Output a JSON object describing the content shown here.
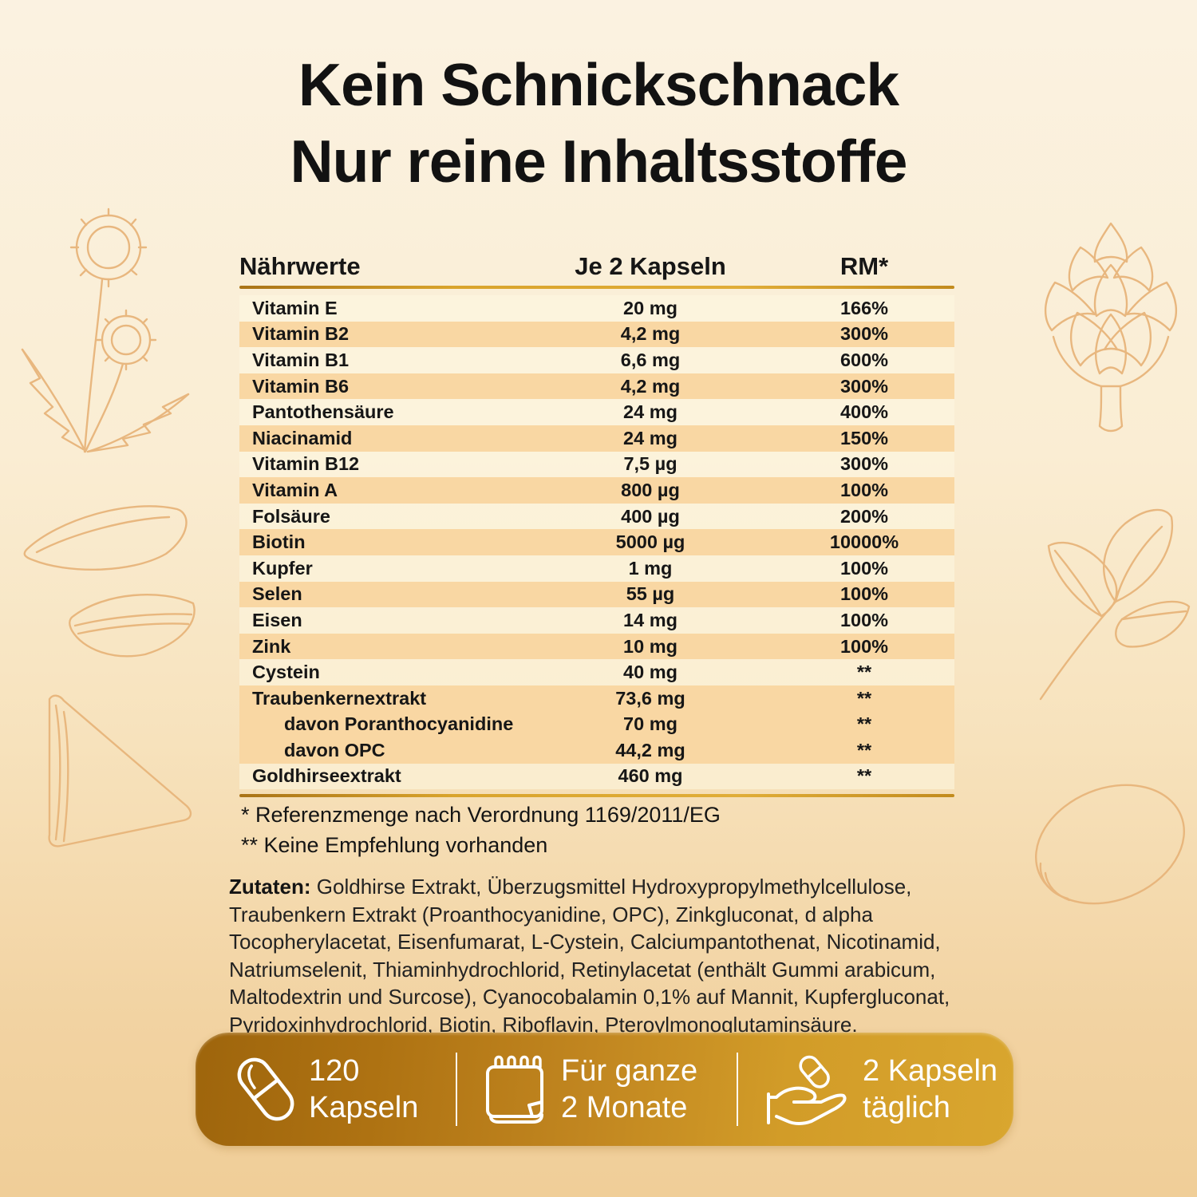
{
  "page": {
    "title_line1": "Kein Schnickschnack",
    "title_line2": "Nur reine Inhaltsstoffe"
  },
  "table": {
    "headers": {
      "name": "Nährwerte",
      "per": "Je 2 Kapseln",
      "rm": "RM*"
    },
    "rows": [
      {
        "name": "Vitamin E",
        "amount": "20 mg",
        "rm": "166%",
        "highlight": false,
        "indent": false
      },
      {
        "name": "Vitamin B2",
        "amount": "4,2 mg",
        "rm": "300%",
        "highlight": true,
        "indent": false
      },
      {
        "name": "Vitamin B1",
        "amount": "6,6 mg",
        "rm": "600%",
        "highlight": false,
        "indent": false
      },
      {
        "name": "Vitamin B6",
        "amount": "4,2 mg",
        "rm": "300%",
        "highlight": true,
        "indent": false
      },
      {
        "name": "Pantothensäure",
        "amount": "24 mg",
        "rm": "400%",
        "highlight": false,
        "indent": false
      },
      {
        "name": "Niacinamid",
        "amount": "24 mg",
        "rm": "150%",
        "highlight": true,
        "indent": false
      },
      {
        "name": "Vitamin B12",
        "amount": "7,5 µg",
        "rm": "300%",
        "highlight": false,
        "indent": false
      },
      {
        "name": "Vitamin A",
        "amount": "800 µg",
        "rm": "100%",
        "highlight": true,
        "indent": false
      },
      {
        "name": "Folsäure",
        "amount": "400 µg",
        "rm": "200%",
        "highlight": false,
        "indent": false
      },
      {
        "name": "Biotin",
        "amount": "5000 µg",
        "rm": "10000%",
        "highlight": true,
        "indent": false
      },
      {
        "name": "Kupfer",
        "amount": "1 mg",
        "rm": "100%",
        "highlight": false,
        "indent": false
      },
      {
        "name": "Selen",
        "amount": "55 µg",
        "rm": "100%",
        "highlight": true,
        "indent": false
      },
      {
        "name": "Eisen",
        "amount": "14 mg",
        "rm": "100%",
        "highlight": false,
        "indent": false
      },
      {
        "name": "Zink",
        "amount": "10 mg",
        "rm": "100%",
        "highlight": true,
        "indent": false
      },
      {
        "name": "Cystein",
        "amount": "40 mg",
        "rm": "**",
        "highlight": false,
        "indent": false
      },
      {
        "name": "Traubenkernextrakt",
        "amount": "73,6 mg",
        "rm": "**",
        "highlight": true,
        "indent": false
      },
      {
        "name": "davon Poranthocyanidine",
        "amount": "70 mg",
        "rm": "**",
        "highlight": true,
        "indent": true
      },
      {
        "name": "davon OPC",
        "amount": "44,2 mg",
        "rm": "**",
        "highlight": true,
        "indent": true
      },
      {
        "name": "Goldhirseextrakt",
        "amount": "460 mg",
        "rm": "**",
        "highlight": false,
        "indent": false
      }
    ]
  },
  "footnotes": {
    "reference": "* Referenzmenge nach Verordnung 1169/2011/EG",
    "recommendation": "** Keine Empfehlung vorhanden"
  },
  "ingredients": {
    "label": "Zutaten:",
    "text": " Goldhirse Extrakt, Überzugsmittel Hydroxypropylmethylcellulose, Traubenkern Extrakt  (Proanthocyanidine, OPC), Zinkgluconat, d alpha Tocopherylacetat, Eisenfumarat, L-Cystein, Calciumpantothenat, Nicotinamid, Natriumselenit, Thiaminhydrochlorid, Retinylacetat (enthält Gummi arabicum, Maltodextrin und Surcose), Cyanocobalamin 0,1% auf Mannit,  Kupfergluconat, Pyridoxinhydrochlorid, Biotin, Riboflavin, Pteroylmonoglutaminsäure."
  },
  "features": [
    {
      "icon": "capsule-icon",
      "line1": "120",
      "line2": "Kapseln"
    },
    {
      "icon": "calendar-icon",
      "line1": "Für ganze",
      "line2": "2 Monate"
    },
    {
      "icon": "hand-capsule-icon",
      "line1": "2 Kapseln",
      "line2": "täglich"
    }
  ],
  "decorations": [
    "dandelion-illustration",
    "artichoke-illustration",
    "almond-shell-illustration",
    "almond-slice-illustration",
    "leaf-sprig-illustration",
    "almond-whole-illustration"
  ],
  "colors": {
    "background_top": "#FBF2E1",
    "background_bottom": "#F0CE98",
    "row_highlight": "#F9D7A3",
    "gold_rule": "#D9A42C",
    "bar_gradient_left": "#9E650C",
    "bar_gradient_right": "#D9A62F",
    "line_art": "#E8B57B",
    "text": "#161616"
  }
}
